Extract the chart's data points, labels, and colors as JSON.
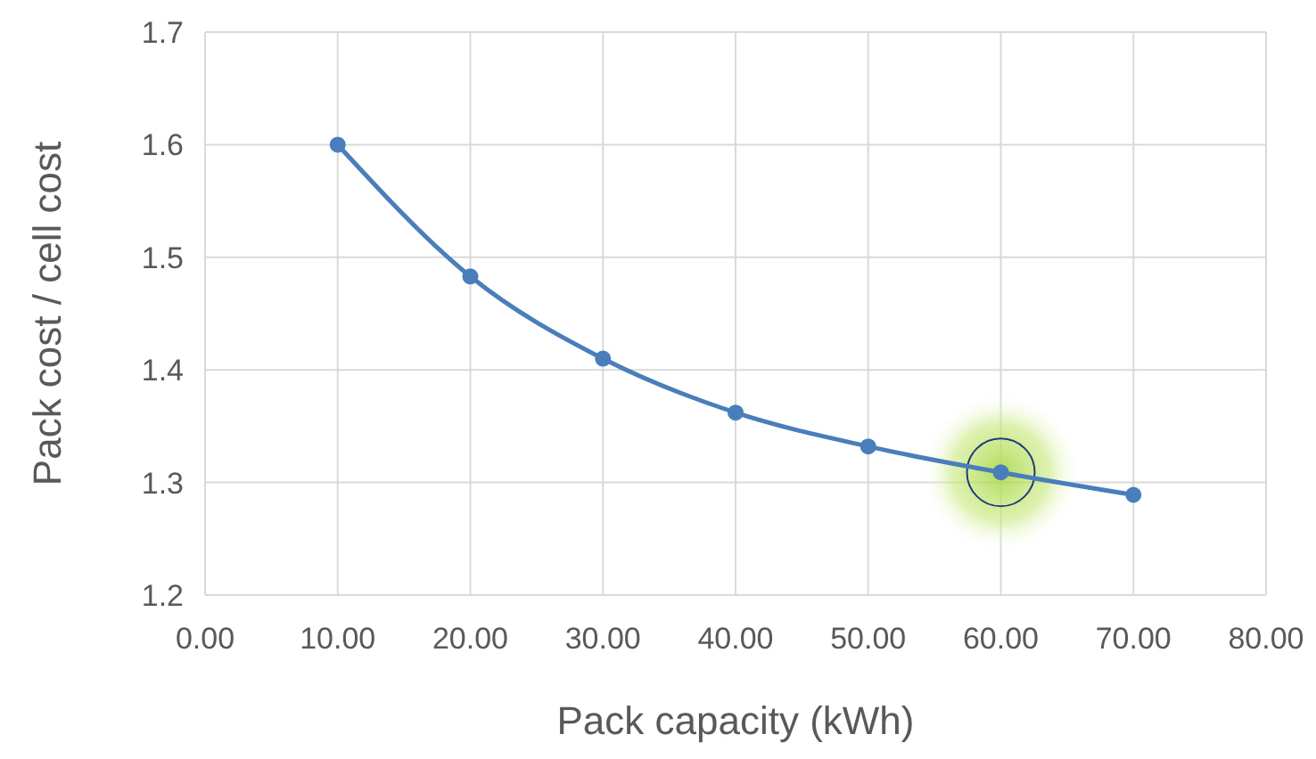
{
  "chart_data": {
    "type": "line",
    "xlabel": "Pack capacity (kWh)",
    "ylabel": "Pack cost / cell cost",
    "x": [
      10,
      20,
      30,
      40,
      50,
      60,
      70
    ],
    "series": [
      {
        "color": "#4a7ebb",
        "values": [
          1.6,
          1.483,
          1.41,
          1.362,
          1.332,
          1.309,
          1.289
        ]
      }
    ],
    "xlim": [
      0,
      80
    ],
    "xticks": [
      {
        "value": 0,
        "label": "0.00"
      },
      {
        "value": 10,
        "label": "10.00"
      },
      {
        "value": 20,
        "label": "20.00"
      },
      {
        "value": 30,
        "label": "30.00"
      },
      {
        "value": 40,
        "label": "40.00"
      },
      {
        "value": 50,
        "label": "50.00"
      },
      {
        "value": 60,
        "label": "60.00"
      },
      {
        "value": 70,
        "label": "70.00"
      },
      {
        "value": 80,
        "label": "80.00"
      }
    ],
    "ylim": [
      1.2,
      1.7
    ],
    "yticks": [
      1.2,
      1.3,
      1.4,
      1.5,
      1.6,
      1.7
    ],
    "grid": true,
    "marker": "circle",
    "line_style": "solid"
  }
}
